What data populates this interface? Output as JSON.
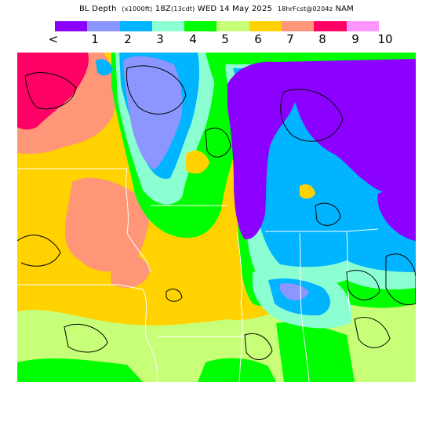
{
  "title": {
    "main": "BL Depth",
    "units": "(x1000ft)",
    "time": "18Z",
    "local": "(13cdt)",
    "date": "WED 14 May 2025",
    "fcst": "18hrFcst@0204z",
    "model": "NAM"
  },
  "legend": {
    "colors": [
      "#8c00ff",
      "#8c96ff",
      "#00b4ff",
      "#8cffd2",
      "#00ff00",
      "#c8ff78",
      "#ffd200",
      "#ff9678",
      "#ff0064",
      "#ff96ff"
    ],
    "labels": [
      "<",
      "1",
      "2",
      "3",
      "4",
      "5",
      "6",
      "7",
      "8",
      "9",
      "10"
    ]
  },
  "map": {
    "region": "Upper Midwest / Great Lakes",
    "colors": {
      "lake": "#8c00ff",
      "lt_purple": "#8c96ff",
      "blue": "#00b4ff",
      "aqua": "#8cffd2",
      "green": "#00ff00",
      "lt_green": "#c8ff78",
      "yellow": "#ffd200",
      "salmon": "#ff9678",
      "red": "#ff0064",
      "border": "#ffffff",
      "contour": "#000000"
    }
  }
}
